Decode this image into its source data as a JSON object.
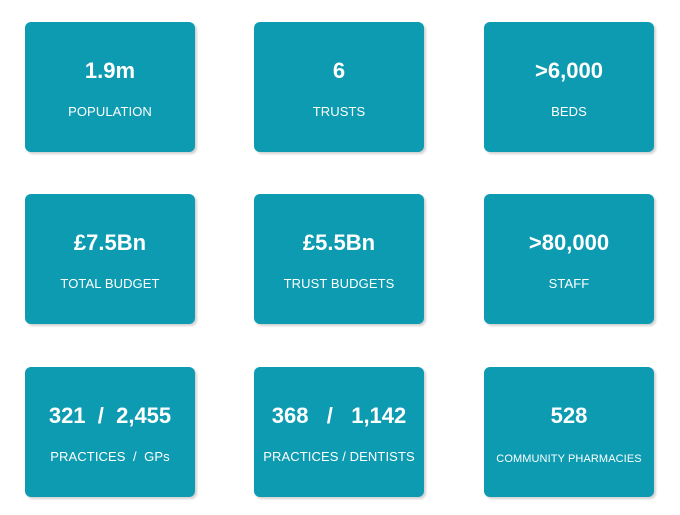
{
  "tiles": [
    {
      "value": "1.9m",
      "label": "POPULATION"
    },
    {
      "value": "6",
      "label": "TRUSTS"
    },
    {
      "value": ">6,000",
      "label": "BEDS"
    },
    {
      "value": "£7.5Bn",
      "label": "TOTAL BUDGET"
    },
    {
      "value": "£5.5Bn",
      "label": "TRUST BUDGETS"
    },
    {
      "value": ">80,000",
      "label": "STAFF"
    },
    {
      "value": "321  /  2,455",
      "label": "PRACTICES  /  GPs"
    },
    {
      "value": "368   /   1,142",
      "label": "PRACTICES / DENTISTS"
    },
    {
      "value": "528",
      "label": "COMMUNITY PHARMACIES"
    }
  ],
  "colors": {
    "tile_background": "#0d9bb1",
    "tile_text": "#ffffff",
    "page_background": "#ffffff"
  }
}
